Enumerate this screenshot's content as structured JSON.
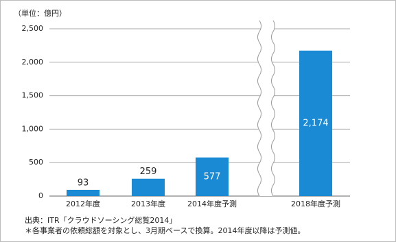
{
  "chart_data": {
    "type": "bar",
    "unit_label": "（単位：億円）",
    "categories": [
      "2012年度",
      "2013年度",
      "2014年度予測",
      "2018年度予測"
    ],
    "values": [
      93,
      259,
      577,
      2174
    ],
    "value_labels": [
      "93",
      "259",
      "577",
      "2,174"
    ],
    "color": "#1a8ad4",
    "ylim": [
      0,
      2500
    ],
    "yticks": [
      0,
      500,
      {
        "value": 1000,
        "label": "1,000"
      },
      {
        "value": 1500,
        "label": "1,500"
      },
      {
        "value": 2000,
        "label": "2,000"
      },
      {
        "value": 2500,
        "label": "2,500"
      }
    ],
    "grid": true,
    "notes": [
      "出典：ITR「クラウドソーシング総覧2014」",
      "＊各事業者の依頼総額を対象とし、3月期ベースで換算。2014年度以降は予測値。"
    ]
  }
}
